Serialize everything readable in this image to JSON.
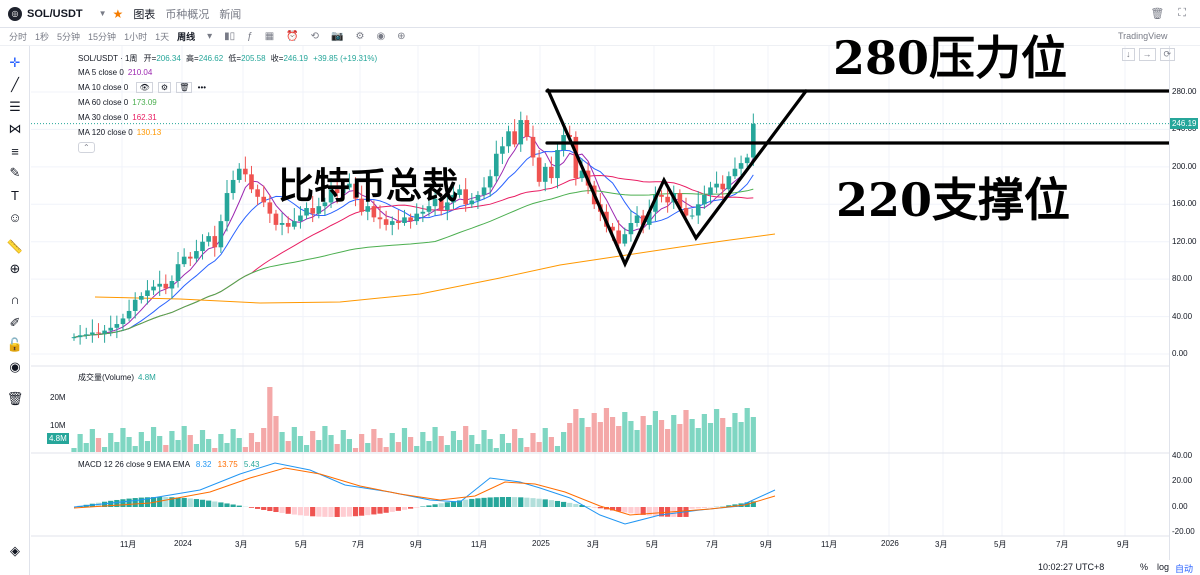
{
  "topbar": {
    "symbol": "SOL/USDT",
    "tabs": [
      "图表",
      "币种概况",
      "新闻"
    ]
  },
  "toolbar": {
    "timeframes": [
      "分时",
      "1秒",
      "5分钟",
      "15分钟",
      "1小时",
      "1天",
      "周线"
    ],
    "selected_timeframe": "周线"
  },
  "brand": "TradingView",
  "legend": {
    "main": "SOL/USDT · 1周",
    "open_label": "开=",
    "open": "206.34",
    "high_label": "高=",
    "high": "246.62",
    "low_label": "低=",
    "low": "205.58",
    "close_label": "收=",
    "close": "246.19",
    "change": "+39.85 (+19.31%)",
    "ma": [
      {
        "label": "MA 5 close 0",
        "value": "210.04",
        "color": "#9c27b0"
      },
      {
        "label": "MA 10 close 0",
        "value": "",
        "color": "#2962ff"
      },
      {
        "label": "MA 60 close 0",
        "value": "173.09",
        "color": "#4caf50"
      },
      {
        "label": "MA 30 close 0",
        "value": "162.31",
        "color": "#e91e63"
      },
      {
        "label": "MA 120 close 0",
        "value": "130.13",
        "color": "#ff9800"
      }
    ],
    "volume_label": "成交量(Volume)",
    "volume_value": "4.8M",
    "macd_label": "MACD 12 26 close 9 EMA EMA",
    "macd_values": [
      "8.32",
      "13.75",
      "5.43"
    ]
  },
  "annotations": {
    "resistance": "280压力位",
    "support": "220支撑位",
    "title": "比特币总裁"
  },
  "price_axis": [
    "280.00",
    "240.00",
    "200.00",
    "160.00",
    "120.00",
    "80.00",
    "40.00",
    "0.00"
  ],
  "current_price": "246.19",
  "volume_axis": [
    "20M",
    "10M"
  ],
  "volume_current": "4.8M",
  "macd_axis": [
    "40.00",
    "20.00",
    "0.00",
    "-20.00"
  ],
  "time_axis": [
    "11月",
    "2024",
    "3月",
    "5月",
    "7月",
    "9月",
    "11月",
    "2025",
    "3月",
    "5月",
    "7月",
    "9月",
    "11月",
    "2026",
    "3月",
    "5月",
    "7月",
    "9月"
  ],
  "bottom": {
    "clock": "10:02:27 UTC+8",
    "percent": "%",
    "log": "log",
    "auto": "自动"
  },
  "colors": {
    "up": "#26a69a",
    "down": "#ef5350",
    "up_vol": "#7fd6c2",
    "down_vol": "#f4a8a8"
  },
  "chart_data": {
    "type": "candlestick",
    "closes": [
      18,
      20,
      21,
      23,
      22,
      25,
      28,
      32,
      38,
      46,
      58,
      62,
      68,
      72,
      75,
      70,
      78,
      96,
      104,
      102,
      110,
      120,
      126,
      114,
      142,
      172,
      186,
      198,
      192,
      176,
      168,
      162,
      150,
      138,
      140,
      136,
      142,
      148,
      156,
      150,
      158,
      162,
      176,
      172,
      178,
      182,
      166,
      152,
      158,
      146,
      144,
      138,
      142,
      140,
      146,
      142,
      150,
      152,
      158,
      166,
      154,
      162,
      170,
      176,
      160,
      164,
      170,
      178,
      190,
      214,
      222,
      238,
      224,
      250,
      232,
      210,
      184,
      200,
      188,
      218,
      234,
      232,
      188,
      196,
      180,
      160,
      152,
      136,
      132,
      118,
      128,
      140,
      148,
      138,
      152,
      170,
      168,
      162,
      172,
      156,
      148,
      148,
      160,
      170,
      178,
      182,
      176,
      190,
      198,
      204,
      210,
      246
    ]
  }
}
